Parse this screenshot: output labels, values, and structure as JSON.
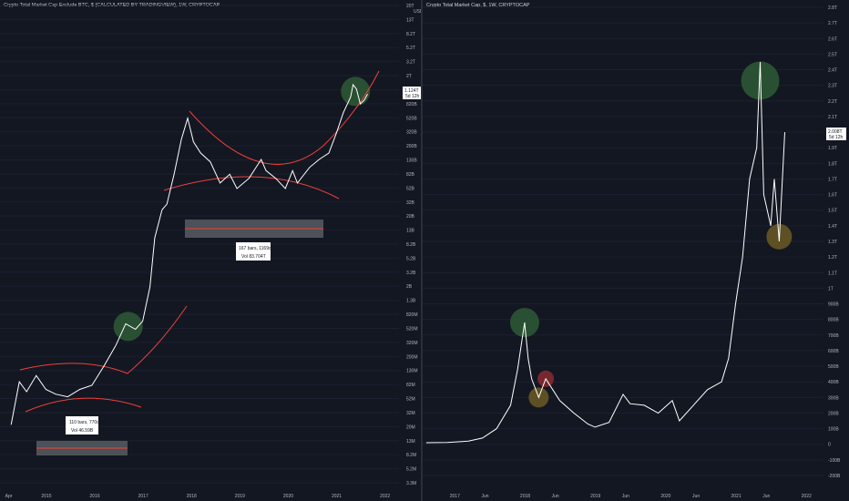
{
  "left_panel": {
    "title": "Crypto Total Market Cap Exclude BTC, $ (CALCULATED BY TRADINGVIEW), 1W, CRYPTOCAP",
    "currency": "USD",
    "last_value": "1.124T",
    "last_countdown": "5d 12h",
    "measure_1": {
      "bars": "110 bars, 770d",
      "vol": "Vol 46.59B"
    },
    "measure_2": {
      "bars": "167 bars, 1169d",
      "vol": "Vol 83.704T"
    }
  },
  "right_panel": {
    "title": "Crypto Total Market Cap, $, 1W, CRYPTOCAP",
    "last_value": "2.008T",
    "last_countdown": "5d 12h"
  },
  "colors": {
    "background": "#131722",
    "price_line": "#ffffff",
    "trend_curve": "#f0413a",
    "green_marker": "#2e5a35",
    "red_marker": "#8a2a30",
    "yellow_marker": "#6b5a25",
    "measure_box": "#5d6066"
  },
  "chart_data": [
    {
      "type": "line",
      "title": "Crypto Total Market Cap Exclude BTC, $ (CALCULATED BY TRADINGVIEW), 1W, CRYPTOCAP",
      "log_scale": true,
      "x_ticks": [
        "Apr",
        "2015",
        "2016",
        "2017",
        "2018",
        "2019",
        "2020",
        "2021",
        "2022"
      ],
      "y_ticks": [
        "20T",
        "13T",
        "8.2T",
        "5.2T",
        "3.2T",
        "2T",
        "1.3T",
        "820B",
        "520B",
        "320B",
        "200B",
        "130B",
        "82B",
        "52B",
        "32B",
        "20B",
        "13B",
        "8.2B",
        "5.2B",
        "3.2B",
        "2B",
        "1.3B",
        "820M",
        "520M",
        "320M",
        "200M",
        "130M",
        "82M",
        "52M",
        "32M",
        "20M",
        "13M",
        "8.2M",
        "5.2M",
        "3.3M"
      ],
      "series": [
        {
          "x": [
            2014.28,
            2014.45,
            2014.6,
            2014.8,
            2015.0,
            2015.2,
            2015.45,
            2015.7,
            2015.95,
            2016.2,
            2016.45,
            2016.65,
            2016.85,
            2017.0,
            2017.15,
            2017.25,
            2017.4,
            2017.5,
            2017.65,
            2017.8,
            2017.93,
            2018.05,
            2018.2,
            2018.4,
            2018.6,
            2018.8,
            2018.95,
            2019.2,
            2019.45,
            2019.55,
            2019.75,
            2019.95,
            2020.1,
            2020.2,
            2020.45,
            2020.65,
            2020.85,
            2021.0,
            2021.15,
            2021.3,
            2021.35,
            2021.42,
            2021.5,
            2021.58,
            2021.65
          ],
          "y": [
            22000000.0,
            90000000.0,
            65000000.0,
            110000000.0,
            70000000.0,
            60000000.0,
            55000000.0,
            70000000.0,
            80000000.0,
            150000000.0,
            300000000.0,
            600000000.0,
            500000000.0,
            650000000.0,
            2000000000.0,
            10000000000.0,
            25000000000.0,
            30000000000.0,
            80000000000.0,
            250000000000.0,
            500000000000.0,
            230000000000.0,
            160000000000.0,
            120000000000.0,
            60000000000.0,
            80000000000.0,
            50000000000.0,
            70000000000.0,
            130000000000.0,
            90000000000.0,
            70000000000.0,
            50000000000.0,
            90000000000.0,
            60000000000.0,
            100000000000.0,
            130000000000.0,
            160000000000.0,
            300000000000.0,
            600000000000.0,
            1000000000000.0,
            1500000000000.0,
            1300000000000.0,
            800000000000.0,
            900000000000.0,
            1100000000000.0
          ]
        }
      ]
    },
    {
      "type": "line",
      "title": "Crypto Total Market Cap, $, 1W, CRYPTOCAP",
      "log_scale": false,
      "x_ticks": [
        "2017",
        "Jun",
        "2018",
        "Jun",
        "2019",
        "Jun",
        "2020",
        "Jun",
        "2021",
        "Jun",
        "2022"
      ],
      "y_ticks": [
        "2.8T",
        "2.7T",
        "2.6T",
        "2.5T",
        "2.4T",
        "2.3T",
        "2.2T",
        "2.1T",
        "2T",
        "1.9T",
        "1.8T",
        "1.7T",
        "1.6T",
        "1.5T",
        "1.4T",
        "1.3T",
        "1.2T",
        "1.1T",
        "1T",
        "900B",
        "800B",
        "700B",
        "600B",
        "500B",
        "400B",
        "300B",
        "200B",
        "100B",
        "0",
        "-100B",
        "-200B"
      ],
      "series": [
        {
          "x": [
            2016.6,
            2016.9,
            2017.2,
            2017.4,
            2017.6,
            2017.8,
            2017.9,
            2018.0,
            2018.05,
            2018.1,
            2018.2,
            2018.3,
            2018.4,
            2018.5,
            2018.7,
            2018.9,
            2019.0,
            2019.2,
            2019.4,
            2019.5,
            2019.7,
            2019.9,
            2020.1,
            2020.2,
            2020.4,
            2020.6,
            2020.8,
            2020.9,
            2021.0,
            2021.1,
            2021.2,
            2021.3,
            2021.35,
            2021.4,
            2021.5,
            2021.55,
            2021.62,
            2021.7
          ],
          "y": [
            10,
            12,
            20,
            40,
            100,
            250,
            480,
            780,
            550,
            420,
            300,
            420,
            350,
            280,
            200,
            130,
            110,
            140,
            320,
            260,
            250,
            200,
            280,
            150,
            250,
            350,
            400,
            550,
            900,
            1200,
            1700,
            1900,
            2450,
            1600,
            1400,
            1700,
            1300,
            2000
          ]
        }
      ]
    }
  ]
}
